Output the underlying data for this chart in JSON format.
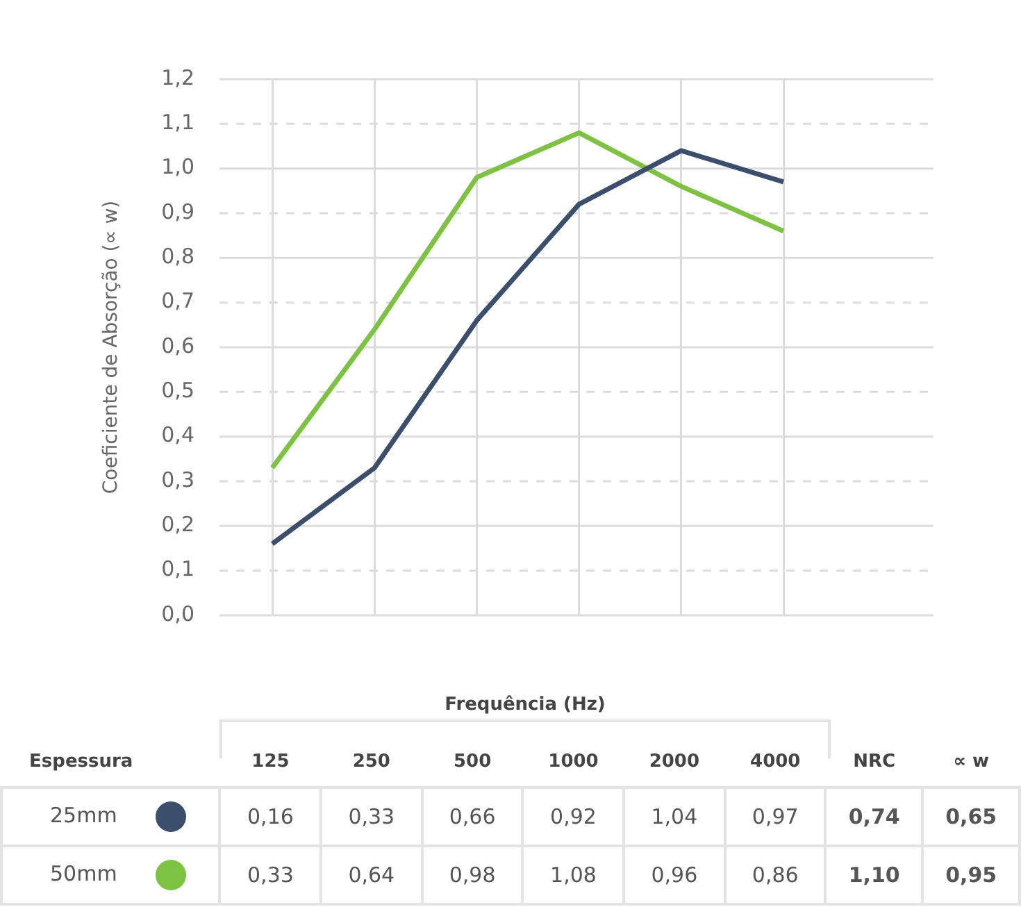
{
  "chart_data": {
    "type": "line",
    "xlabel": "Frequência (Hz)",
    "ylabel": "Coeficiente de Absorção (∝ w)",
    "categories": [
      "125",
      "250",
      "500",
      "1000",
      "2000",
      "4000"
    ],
    "series": [
      {
        "name": "25mm",
        "color": "#3b4e6c",
        "values": [
          0.16,
          0.33,
          0.66,
          0.92,
          1.04,
          0.97
        ],
        "value_labels": [
          "0,16",
          "0,33",
          "0,66",
          "0,92",
          "1,04",
          "0,97"
        ]
      },
      {
        "name": "50mm",
        "color": "#7dc242",
        "values": [
          0.33,
          0.64,
          0.98,
          1.08,
          0.96,
          0.86
        ],
        "value_labels": [
          "0,33",
          "0,64",
          "0,98",
          "1,08",
          "0,96",
          "0,86"
        ]
      }
    ],
    "ylim": [
      0,
      1.2
    ],
    "yticks": [
      {
        "value": 0,
        "label": "0,0"
      },
      {
        "value": 0.1,
        "label": "0,1"
      },
      {
        "value": 0.2,
        "label": "0,2"
      },
      {
        "value": 0.3,
        "label": "0,3"
      },
      {
        "value": 0.4,
        "label": "0,4"
      },
      {
        "value": 0.5,
        "label": "0,5"
      },
      {
        "value": 0.6,
        "label": "0,6"
      },
      {
        "value": 0.7,
        "label": "0,7"
      },
      {
        "value": 0.8,
        "label": "0,8"
      },
      {
        "value": 0.9,
        "label": "0,9"
      },
      {
        "value": 1.0,
        "label": "1,0"
      },
      {
        "value": 1.1,
        "label": "1,1"
      },
      {
        "value": 1.2,
        "label": "1,2"
      }
    ],
    "grid": true,
    "legend": "bottom",
    "marker": "none",
    "line_style": "solid",
    "annotations": [
      "Espessura",
      "NRC",
      "∝ w",
      "0,74",
      "0,65",
      "1,10",
      "0,95"
    ]
  }
}
